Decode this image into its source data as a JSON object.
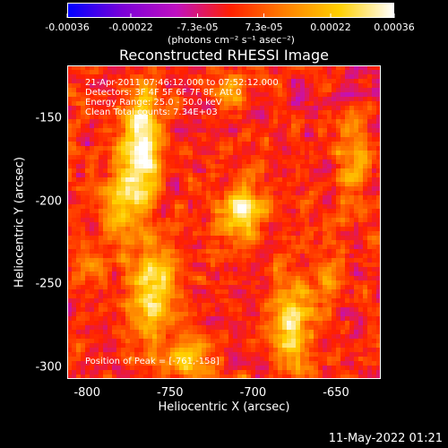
{
  "colorbar": {
    "tick_labels": [
      "-0.00036",
      "-0.00022",
      "-7.3e-05",
      "7.3e-05",
      "0.00022",
      "0.00036"
    ],
    "tick_values": [
      -0.00036,
      -0.00022,
      -7.3e-05,
      7.3e-05,
      0.00022,
      0.00036
    ],
    "range": [
      -0.00036,
      0.00036
    ],
    "unit": "(photons cm⁻² s⁻¹ asec⁻²)",
    "colormap": [
      "#0000ff",
      "#7b00d8",
      "#c010c0",
      "#ff2000",
      "#ff8000",
      "#ffd000",
      "#ffffff"
    ]
  },
  "title": "Reconstructed RHESSI Image",
  "annotations": {
    "line1": "21-Apr-2011 07:46:12.000 to 07:52:12.000",
    "line2": "Detectors: 3F 4F 5F 6F 7F 8F, Att 0",
    "line3": "Energy Range: 25.0 - 50.0 keV",
    "line4": "Clean    Total counts: 7.34E+03",
    "peak": "Position of Peak = [-761,-158]"
  },
  "chart_data": {
    "type": "heatmap",
    "title": "Reconstructed RHESSI Image",
    "xlabel": "Heliocentric X (arcsec)",
    "ylabel": "Heliocentric Y (arcsec)",
    "xlim": [
      -812,
      -623
    ],
    "ylim": [
      -307,
      -118
    ],
    "x_ticks": [
      -800,
      -750,
      -700,
      -650
    ],
    "y_ticks": [
      -150,
      -200,
      -250,
      -300
    ],
    "x_tick_labels": [
      "-800",
      "-750",
      "-700",
      "-650"
    ],
    "y_tick_labels": [
      "-150",
      "-200",
      "-250",
      "-300"
    ],
    "peak_position": [
      -761,
      -158
    ],
    "sources": [
      {
        "x": -766,
        "y": -165,
        "sx": 8,
        "sy": 22,
        "amp": 0.00036
      },
      {
        "x": -778,
        "y": -200,
        "sx": 9,
        "sy": 18,
        "amp": 0.00024
      },
      {
        "x": -760,
        "y": -255,
        "sx": 10,
        "sy": 22,
        "amp": 0.0003
      },
      {
        "x": -706,
        "y": -205,
        "sx": 10,
        "sy": 10,
        "amp": 0.00034
      },
      {
        "x": -677,
        "y": -275,
        "sx": 9,
        "sy": 22,
        "amp": 0.00026
      },
      {
        "x": -740,
        "y": -295,
        "sx": 10,
        "sy": 8,
        "amp": 0.00022
      },
      {
        "x": -640,
        "y": -175,
        "sx": 7,
        "sy": 18,
        "amp": 0.00016
      },
      {
        "x": -712,
        "y": -135,
        "sx": 8,
        "sy": 10,
        "amp": 0.00014
      },
      {
        "x": -655,
        "y": -245,
        "sx": 7,
        "sy": 12,
        "amp": 0.00014
      },
      {
        "x": -800,
        "y": -240,
        "sx": 7,
        "sy": 14,
        "amp": 0.00012
      }
    ]
  },
  "datestamp": "11-May-2022 01:21"
}
